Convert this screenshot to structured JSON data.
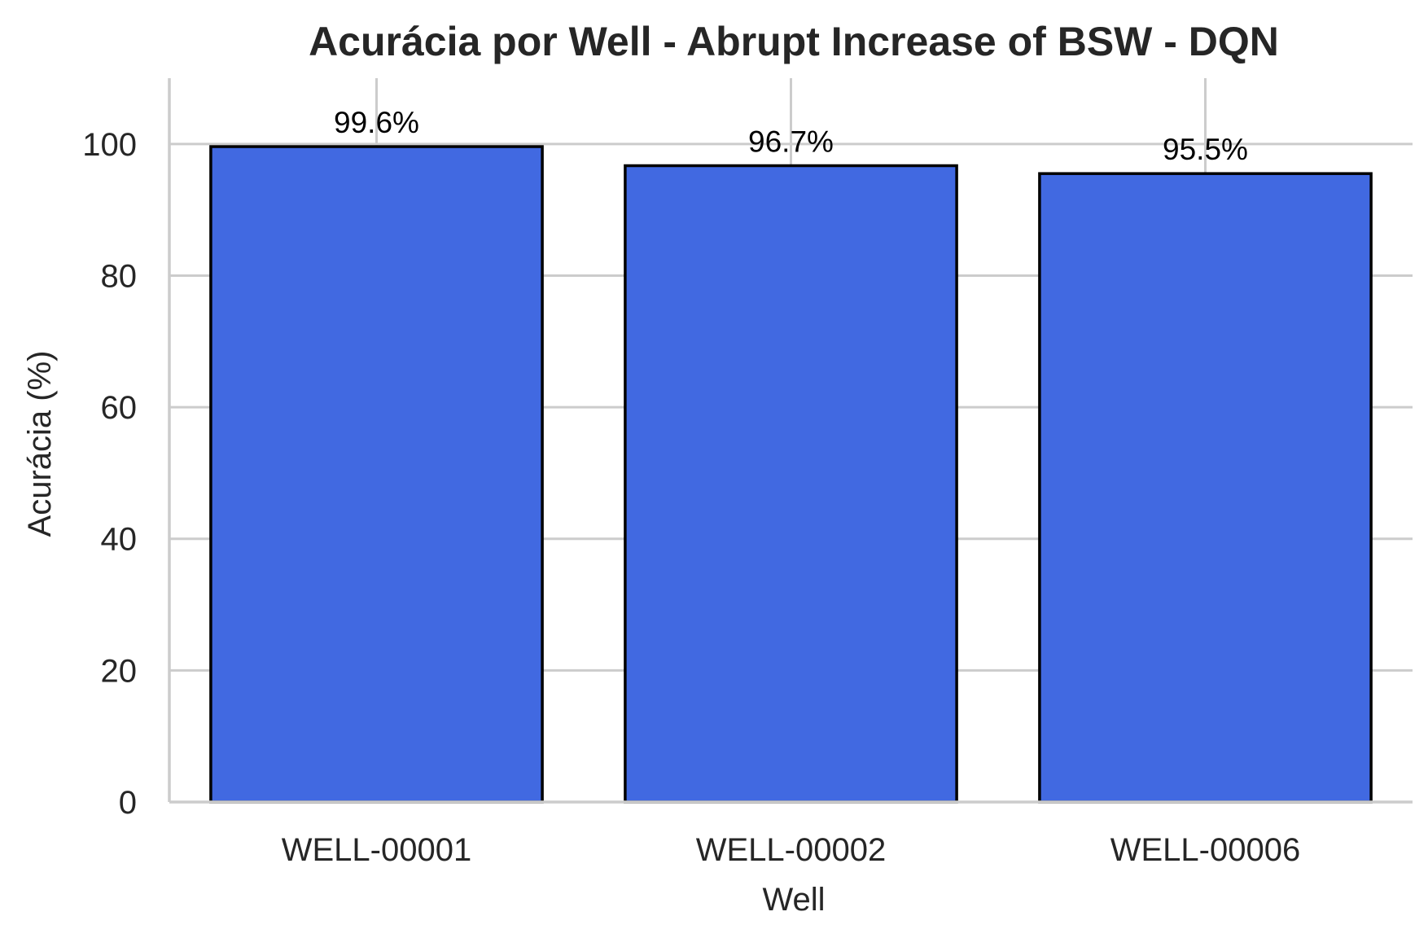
{
  "chart_data": {
    "type": "bar",
    "title": "Acurácia por Well - Abrupt Increase of BSW - DQN",
    "xlabel": "Well",
    "ylabel": "Acurácia (%)",
    "categories": [
      "WELL-00001",
      "WELL-00002",
      "WELL-00006"
    ],
    "values": [
      99.6,
      96.7,
      95.5
    ],
    "data_labels": [
      "99.6%",
      "96.7%",
      "95.5%"
    ],
    "yticks": [
      0,
      20,
      40,
      60,
      80,
      100
    ],
    "ylim": [
      0,
      110
    ],
    "grid": true,
    "bar_color": "#4169E1",
    "bar_edge_color": "#000000"
  }
}
